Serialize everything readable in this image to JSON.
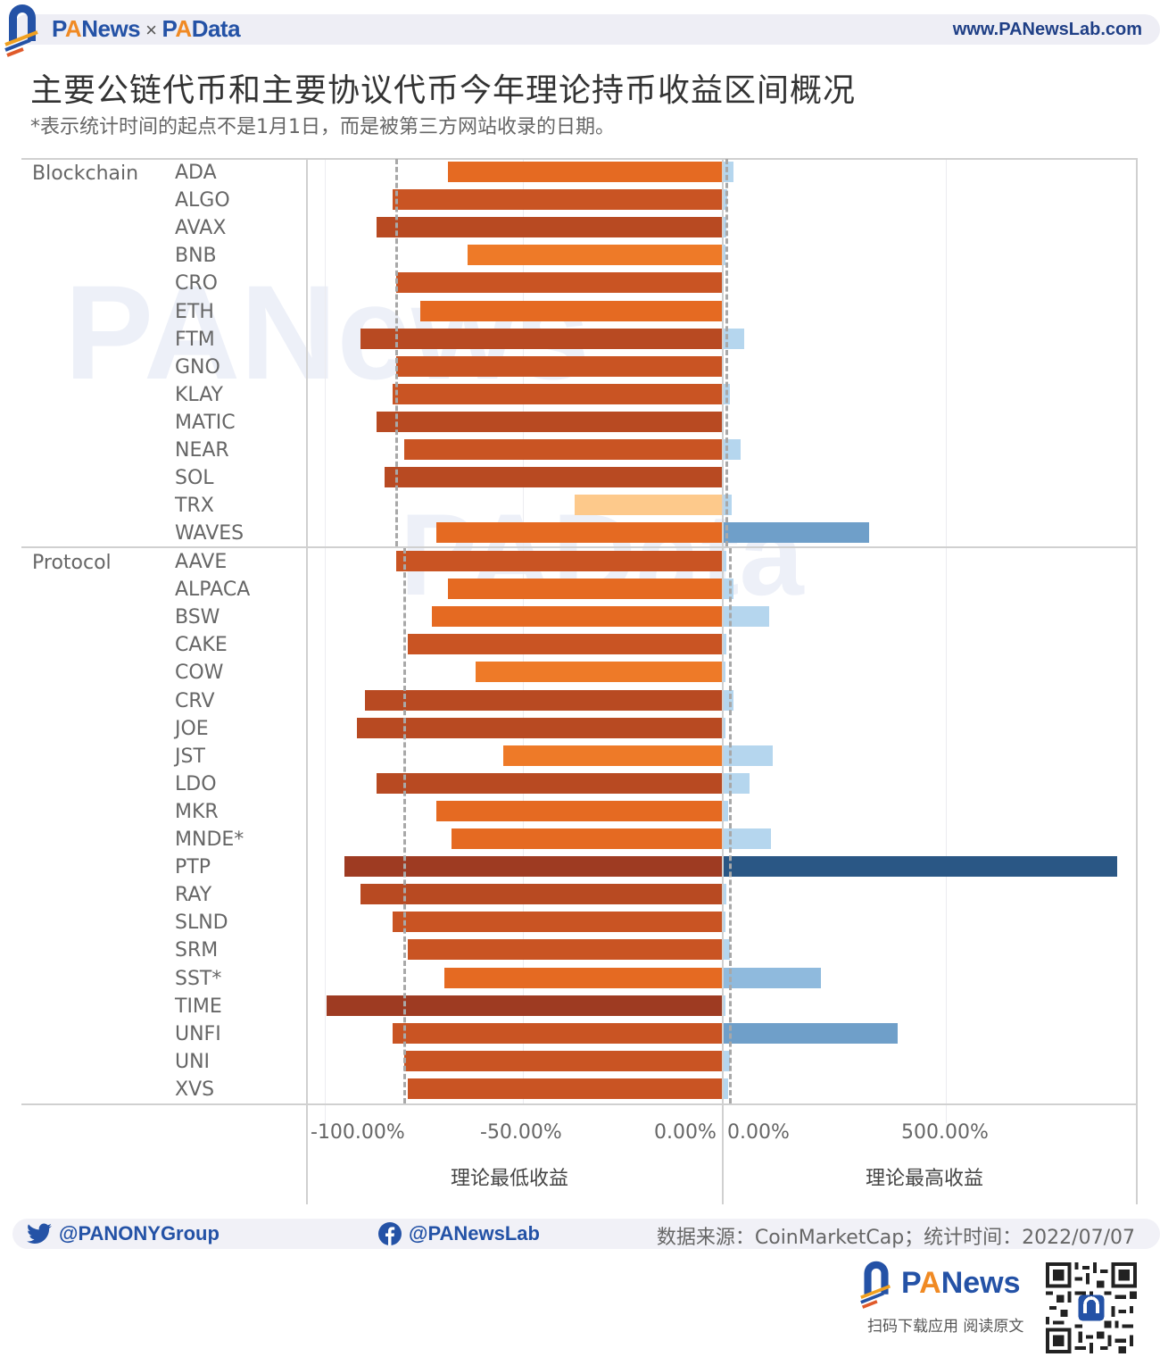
{
  "header": {
    "brand_left": "PANews",
    "brand_sep": "×",
    "brand_right": "PAData",
    "website": "www.PANewsLab.com"
  },
  "title": "主要公链代币和主要协议代币今年理论持币收益区间概况",
  "subtitle": "*表示统计时间的起点不是1月1日，而是被第三方网站收录的日期。",
  "axes": {
    "left_ticks": [
      "-100.00%",
      "-50.00%",
      "0.00%"
    ],
    "right_ticks": [
      "0.00%",
      "500.00%"
    ],
    "left_title": "理论最低收益",
    "right_title": "理论最高收益"
  },
  "watermarks": [
    "PANews",
    "PAData"
  ],
  "footer": {
    "twitter": "@PANONYGroup",
    "facebook": "@PANewsLab",
    "source": "数据来源：CoinMarketCap；统计时间：2022/07/07",
    "brand": "PANews",
    "cta": "扫码下载应用  阅读原文"
  },
  "colors": {
    "min_dark": "#9e3b22",
    "min_mid": "#c95423",
    "min_light": "#ee7a28",
    "min_lightest": "#fdc98b",
    "max_light": "#b5d6ee",
    "max_mid": "#6f9fc9",
    "max_dark": "#2a5785",
    "brand_blue": "#2452a6",
    "brand_orange": "#f08a24"
  },
  "chart_data": {
    "type": "bar",
    "orientation": "horizontal-diverging",
    "title": "主要公链代币和主要协议代币今年理论持币收益区间概况",
    "subtitle": "*表示统计时间的起点不是1月1日，而是被第三方网站收录的日期。",
    "groups": [
      {
        "name": "Blockchain",
        "categories": [
          "ADA",
          "ALGO",
          "AVAX",
          "BNB",
          "CRO",
          "ETH",
          "FTM",
          "GNO",
          "KLAY",
          "MATIC",
          "NEAR",
          "SOL",
          "TRX",
          "WAVES"
        ]
      },
      {
        "name": "Protocol",
        "categories": [
          "AAVE",
          "ALPACA",
          "BSW",
          "CAKE",
          "COW",
          "CRV",
          "JOE",
          "JST",
          "LDO",
          "MKR",
          "MNDE*",
          "PTP",
          "RAY",
          "SLND",
          "SRM",
          "SST*",
          "TIME",
          "UNFI",
          "UNI",
          "XVS"
        ]
      }
    ],
    "series": [
      {
        "name": "理论最低收益",
        "unit": "%",
        "axis": "left",
        "xlim": [
          -100,
          0
        ],
        "values": {
          "ADA": -69,
          "ALGO": -83,
          "AVAX": -87,
          "BNB": -64,
          "CRO": -82,
          "ETH": -76,
          "FTM": -91,
          "GNO": -82,
          "KLAY": -83,
          "MATIC": -87,
          "NEAR": -80,
          "SOL": -85,
          "TRX": -37,
          "WAVES": -72,
          "AAVE": -82,
          "ALPACA": -69,
          "BSW": -73,
          "CAKE": -79,
          "COW": -62,
          "CRV": -90,
          "JOE": -92,
          "JST": -55,
          "LDO": -87,
          "MKR": -72,
          "MNDE*": -68,
          "PTP": -95,
          "RAY": -91,
          "SLND": -83,
          "SRM": -79,
          "SST*": -70,
          "TIME": -99.5,
          "UNFI": -83,
          "UNI": -80,
          "XVS": -79
        }
      },
      {
        "name": "理论最高收益",
        "unit": "%",
        "axis": "right",
        "xlim": [
          0,
          930
        ],
        "values": {
          "ADA": 22,
          "ALGO": 8,
          "AVAX": 6,
          "BNB": 1,
          "CRO": 0,
          "ETH": 0,
          "FTM": 46,
          "GNO": 0,
          "KLAY": 14,
          "MATIC": 0,
          "NEAR": 38,
          "SOL": 0,
          "TRX": 18,
          "WAVES": 327,
          "AAVE": 6,
          "ALPACA": 22,
          "BSW": 102,
          "CAKE": 6,
          "COW": 1,
          "CRV": 22,
          "JOE": 1,
          "JST": 110,
          "LDO": 58,
          "MKR": 10,
          "MNDE*": 106,
          "PTP": 885,
          "RAY": 6,
          "SLND": 1,
          "SRM": 14,
          "SST*": 219,
          "TIME": 1,
          "UNFI": 392,
          "UNI": 14,
          "XVS": 10
        }
      }
    ],
    "reference_lines": {
      "min_avg": {
        "Blockchain": -82,
        "Protocol": -80
      },
      "max_avg": {
        "Blockchain": 4,
        "Protocol": 12
      }
    },
    "x_ticks_left": [
      "-100.00%",
      "-50.00%",
      "0.00%"
    ],
    "x_ticks_right": [
      "0.00%",
      "500.00%"
    ],
    "xlabel_left": "理论最低收益",
    "xlabel_right": "理论最高收益",
    "grid": true,
    "legend": "none"
  }
}
